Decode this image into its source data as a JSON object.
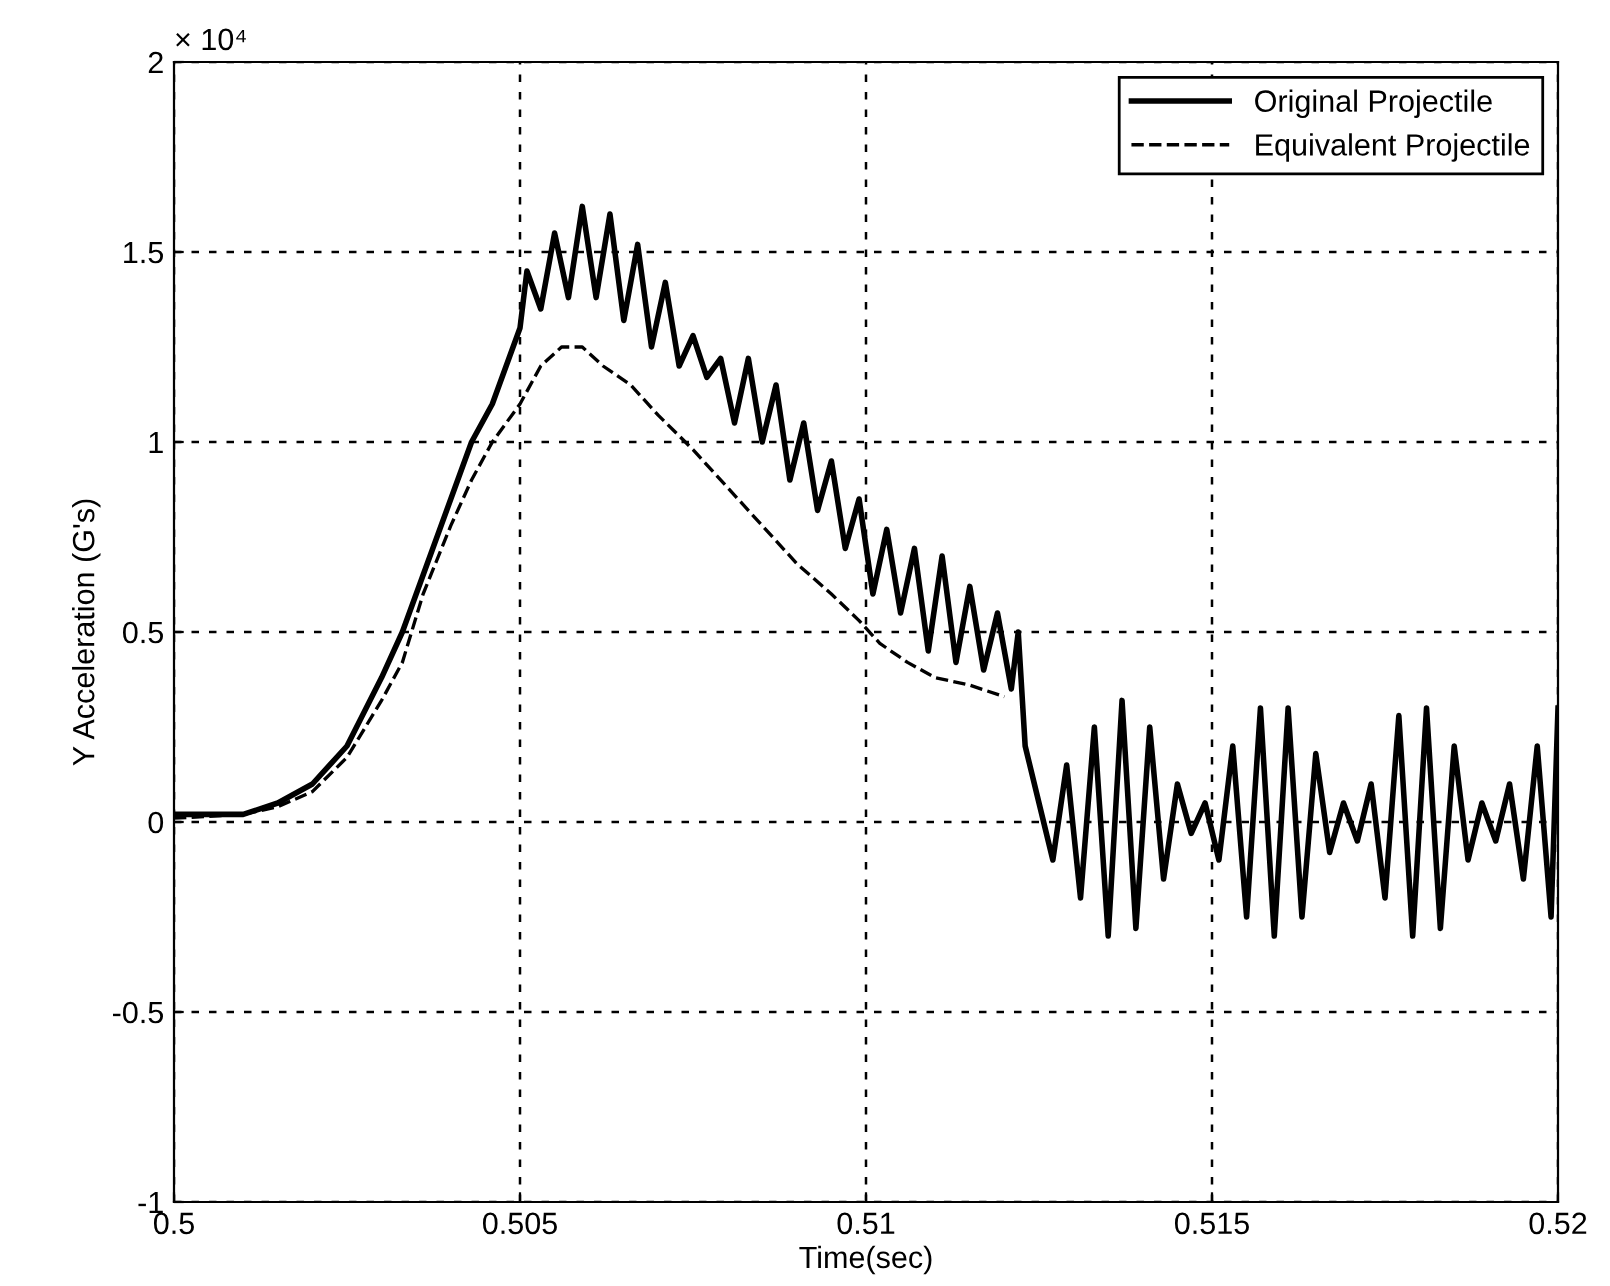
{
  "chart_data": {
    "type": "line",
    "xlabel": "Time(sec)",
    "ylabel": "Y Acceleration (G's)",
    "annotations": [
      "× 10⁴"
    ],
    "xlim": [
      0.5,
      0.52
    ],
    "xticks": [
      0.5,
      0.505,
      0.51,
      0.515,
      0.52
    ],
    "ylim": [
      -1,
      2
    ],
    "yticks": [
      -1,
      -0.5,
      0,
      0.5,
      1,
      1.5,
      2
    ],
    "grid": true,
    "legend": "top right",
    "series": [
      {
        "name": "Original Projectile",
        "color": "#000000",
        "line_style": "solid",
        "x": [
          0.5,
          0.501,
          0.5015,
          0.502,
          0.5025,
          0.503,
          0.5033,
          0.5036,
          0.504,
          0.5043,
          0.5046,
          0.5048,
          0.505,
          0.5051,
          0.5053,
          0.5055,
          0.5057,
          0.5059,
          0.5061,
          0.5063,
          0.5065,
          0.5067,
          0.5069,
          0.5071,
          0.5073,
          0.5075,
          0.5077,
          0.5079,
          0.5081,
          0.5083,
          0.5085,
          0.5087,
          0.5089,
          0.5091,
          0.5093,
          0.5095,
          0.5097,
          0.5099,
          0.5101,
          0.5103,
          0.5105,
          0.5107,
          0.5109,
          0.5111,
          0.5113,
          0.5115,
          0.5117,
          0.5119,
          0.5121,
          0.5122,
          0.5123,
          0.5125,
          0.5127,
          0.5129,
          0.5131,
          0.5133,
          0.5135,
          0.5137,
          0.5139,
          0.5141,
          0.5143,
          0.5145,
          0.5147,
          0.5149,
          0.5151,
          0.5153,
          0.5155,
          0.5157,
          0.5159,
          0.5161,
          0.5163,
          0.5165,
          0.5167,
          0.5169,
          0.5171,
          0.5173,
          0.5175,
          0.5177,
          0.5179,
          0.5181,
          0.5183,
          0.5185,
          0.5187,
          0.5189,
          0.5191,
          0.5193,
          0.5195,
          0.5197,
          0.5199,
          0.52
        ],
        "values": [
          0.02,
          0.02,
          0.05,
          0.1,
          0.2,
          0.38,
          0.5,
          0.65,
          0.85,
          1.0,
          1.1,
          1.2,
          1.3,
          1.45,
          1.35,
          1.55,
          1.38,
          1.62,
          1.38,
          1.6,
          1.32,
          1.52,
          1.25,
          1.42,
          1.2,
          1.28,
          1.17,
          1.22,
          1.05,
          1.22,
          1.0,
          1.15,
          0.9,
          1.05,
          0.82,
          0.95,
          0.72,
          0.85,
          0.6,
          0.77,
          0.55,
          0.72,
          0.45,
          0.7,
          0.42,
          0.62,
          0.4,
          0.55,
          0.35,
          0.5,
          0.2,
          0.05,
          -0.1,
          0.15,
          -0.2,
          0.25,
          -0.3,
          0.32,
          -0.28,
          0.25,
          -0.15,
          0.1,
          -0.03,
          0.05,
          -0.1,
          0.2,
          -0.25,
          0.3,
          -0.3,
          0.3,
          -0.25,
          0.18,
          -0.08,
          0.05,
          -0.05,
          0.1,
          -0.2,
          0.28,
          -0.3,
          0.3,
          -0.28,
          0.2,
          -0.1,
          0.05,
          -0.05,
          0.1,
          -0.15,
          0.2,
          -0.25,
          0.3
        ]
      },
      {
        "name": "Equivalent Projectile",
        "color": "#000000",
        "line_style": "dashed",
        "x": [
          0.5,
          0.501,
          0.5015,
          0.502,
          0.5025,
          0.503,
          0.5033,
          0.5036,
          0.504,
          0.5043,
          0.5046,
          0.505,
          0.5053,
          0.5056,
          0.5059,
          0.5062,
          0.5066,
          0.507,
          0.5075,
          0.508,
          0.5085,
          0.509,
          0.5095,
          0.5099,
          0.5102,
          0.5106,
          0.511,
          0.5115,
          0.512
        ],
        "values": [
          0.01,
          0.02,
          0.04,
          0.08,
          0.17,
          0.32,
          0.42,
          0.6,
          0.78,
          0.9,
          1.0,
          1.1,
          1.2,
          1.25,
          1.25,
          1.2,
          1.15,
          1.07,
          0.98,
          0.88,
          0.78,
          0.68,
          0.6,
          0.53,
          0.47,
          0.42,
          0.38,
          0.36,
          0.33
        ]
      }
    ]
  }
}
